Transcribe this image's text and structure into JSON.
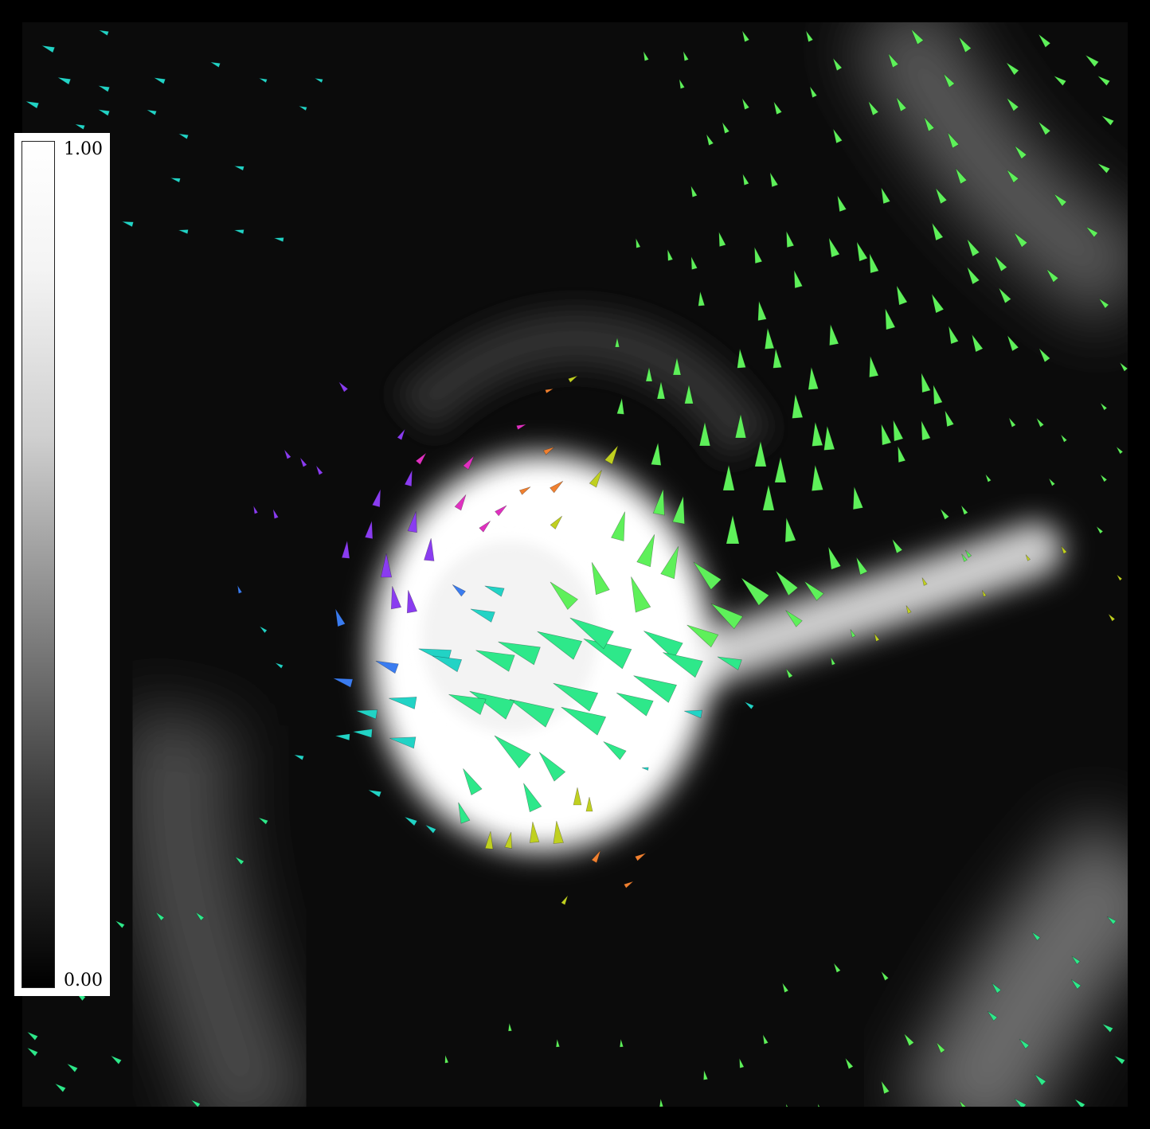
{
  "colorbar": {
    "max_label": "1.00",
    "min_label": "0.00",
    "colormap": [
      "#000000",
      "#ffffff"
    ]
  },
  "field": {
    "glyph_type": "cone-arrows",
    "background": "#000000",
    "colors": {
      "cyan": "#22d3c5",
      "green": "#5ef05a",
      "spring": "#2ee88a",
      "violet": "#8a3cf0",
      "blue": "#3a7cf0",
      "magenta": "#e030c0",
      "orange": "#f08030",
      "yellow": "#c0d020"
    }
  }
}
